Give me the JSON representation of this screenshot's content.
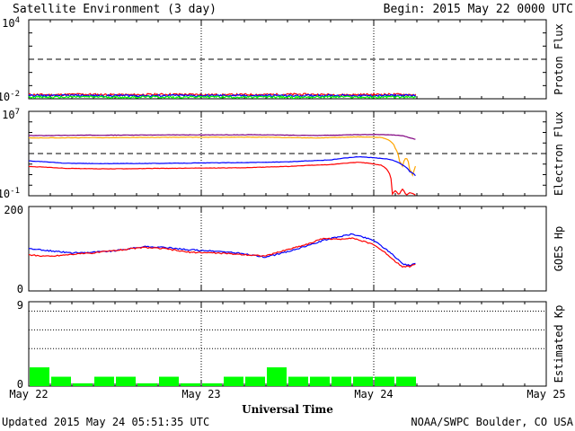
{
  "header": {
    "title": "Satellite Environment (3 day)",
    "begin": "Begin:  2015 May 22 0000 UTC"
  },
  "footer": {
    "updated": "Updated 2015 May 24 05:51:35 UTC",
    "credit": "NOAA/SWPC Boulder, CO USA"
  },
  "chart_data": [
    {
      "type": "line",
      "name": "proton-flux",
      "ylabel": "Proton Flux",
      "yscale": "log",
      "ylim": [
        0.01,
        10000
      ],
      "yticks": [
        {
          "base": "10",
          "exp": "4"
        },
        {
          "base": "10",
          "exp": "-2"
        }
      ],
      "threshold": 10,
      "xlim_hours": [
        0,
        72
      ],
      "data_end_hours": 53.9,
      "series": [
        {
          "color": "#ff0000",
          "values": [
            0.021,
            0.02,
            0.022,
            0.021,
            0.02,
            0.021,
            0.022,
            0.021,
            0.02,
            0.021,
            0.021,
            0.022,
            0.021,
            0.02,
            0.021,
            0.022,
            0.02
          ]
        },
        {
          "color": "#0000ff",
          "values": [
            0.018,
            0.017,
            0.018,
            0.017,
            0.018,
            0.017,
            0.018,
            0.017,
            0.018,
            0.017,
            0.018,
            0.017,
            0.018,
            0.018,
            0.017,
            0.018,
            0.018
          ]
        },
        {
          "color": "#00ff00",
          "values": [
            0.014,
            0.013,
            0.014,
            0.014,
            0.013,
            0.014,
            0.013,
            0.014,
            0.014,
            0.013,
            0.014,
            0.013,
            0.014,
            0.014,
            0.013,
            0.014,
            0.013
          ]
        }
      ]
    },
    {
      "type": "line",
      "name": "electron-flux",
      "ylabel": "Electron Flux",
      "yscale": "log",
      "ylim": [
        0.1,
        10000000
      ],
      "yticks": [
        {
          "base": "10",
          "exp": "7"
        },
        {
          "base": "10",
          "exp": "-1"
        }
      ],
      "threshold": 1000,
      "xlim_hours": [
        0,
        72
      ],
      "series": [
        {
          "color": "#800080",
          "points": [
            [
              0,
              50000
            ],
            [
              8,
              55000
            ],
            [
              20,
              58000
            ],
            [
              32,
              60000
            ],
            [
              40,
              52000
            ],
            [
              44,
              58000
            ],
            [
              48,
              64000
            ],
            [
              50,
              62000
            ],
            [
              52,
              50000
            ],
            [
              53,
              30000
            ],
            [
              54,
              20000
            ]
          ]
        },
        {
          "color": "#ffa500",
          "points": [
            [
              0,
              30000
            ],
            [
              10,
              32000
            ],
            [
              20,
              35000
            ],
            [
              32,
              36000
            ],
            [
              40,
              30000
            ],
            [
              46,
              38000
            ],
            [
              49,
              34000
            ],
            [
              50,
              20000
            ],
            [
              51,
              3000
            ],
            [
              51.5,
              200
            ],
            [
              52,
              60
            ],
            [
              52.5,
              400
            ],
            [
              53,
              30
            ],
            [
              53.5,
              4
            ],
            [
              54,
              100
            ]
          ]
        },
        {
          "color": "#0000ff",
          "points": [
            [
              0,
              200
            ],
            [
              5,
              120
            ],
            [
              10,
              110
            ],
            [
              20,
              120
            ],
            [
              30,
              140
            ],
            [
              36,
              160
            ],
            [
              42,
              250
            ],
            [
              46,
              500
            ],
            [
              50,
              300
            ],
            [
              52,
              80
            ],
            [
              53,
              20
            ],
            [
              54,
              5
            ]
          ]
        },
        {
          "color": "#ff0000",
          "points": [
            [
              0,
              60
            ],
            [
              5,
              40
            ],
            [
              10,
              35
            ],
            [
              20,
              40
            ],
            [
              30,
              45
            ],
            [
              36,
              60
            ],
            [
              42,
              90
            ],
            [
              46,
              150
            ],
            [
              49,
              80
            ],
            [
              50,
              20
            ],
            [
              50.5,
              0.1
            ],
            [
              51,
              0.3
            ],
            [
              51.5,
              0.1
            ],
            [
              52,
              0.4
            ],
            [
              52.5,
              0.1
            ],
            [
              53,
              0.2
            ],
            [
              54,
              0.1
            ]
          ]
        }
      ]
    },
    {
      "type": "line",
      "name": "goes-hp",
      "ylabel": "GOES Hp",
      "ylim": [
        0,
        200
      ],
      "yticks": [
        "200",
        "0"
      ],
      "xlim_hours": [
        0,
        72
      ],
      "series": [
        {
          "color": "#0000ff",
          "points": [
            [
              0,
              100
            ],
            [
              3,
              95
            ],
            [
              6,
              90
            ],
            [
              9,
              92
            ],
            [
              12,
              95
            ],
            [
              16,
              105
            ],
            [
              19,
              103
            ],
            [
              22,
              98
            ],
            [
              26,
              94
            ],
            [
              29,
              90
            ],
            [
              33,
              80
            ],
            [
              36,
              93
            ],
            [
              39,
              108
            ],
            [
              41,
              120
            ],
            [
              43,
              128
            ],
            [
              45,
              135
            ],
            [
              46,
              130
            ],
            [
              48,
              120
            ],
            [
              50,
              95
            ],
            [
              51,
              80
            ],
            [
              52,
              65
            ],
            [
              53,
              60
            ],
            [
              54,
              68
            ]
          ]
        },
        {
          "color": "#ff0000",
          "points": [
            [
              0,
              85
            ],
            [
              3,
              82
            ],
            [
              6,
              87
            ],
            [
              9,
              90
            ],
            [
              12,
              96
            ],
            [
              16,
              103
            ],
            [
              19,
              100
            ],
            [
              22,
              92
            ],
            [
              26,
              90
            ],
            [
              29,
              87
            ],
            [
              33,
              83
            ],
            [
              36,
              98
            ],
            [
              39,
              112
            ],
            [
              41,
              125
            ],
            [
              43,
              122
            ],
            [
              45,
              126
            ],
            [
              46,
              120
            ],
            [
              48,
              110
            ],
            [
              50,
              85
            ],
            [
              51,
              70
            ],
            [
              52,
              58
            ],
            [
              53,
              58
            ],
            [
              54,
              65
            ]
          ]
        }
      ]
    },
    {
      "type": "bar",
      "name": "estimated-kp",
      "ylabel": "Estimated Kp",
      "ylim": [
        0,
        9
      ],
      "yticks": [
        "9",
        "0"
      ],
      "gridlines": [
        9,
        8,
        6,
        4
      ],
      "xlim_hours": [
        0,
        72
      ],
      "bar_color": "#00ff00",
      "bin_hours": 3,
      "values": [
        2,
        1,
        0.3,
        1,
        1,
        0.3,
        1,
        0.3,
        0.3,
        1,
        1,
        2,
        1,
        1,
        1,
        1,
        1,
        1
      ]
    }
  ],
  "xaxis": {
    "label": "Universal Time",
    "ticks": [
      "May 22",
      "May 23",
      "May 24",
      "May 25"
    ],
    "day_lines": [
      24,
      48
    ]
  }
}
